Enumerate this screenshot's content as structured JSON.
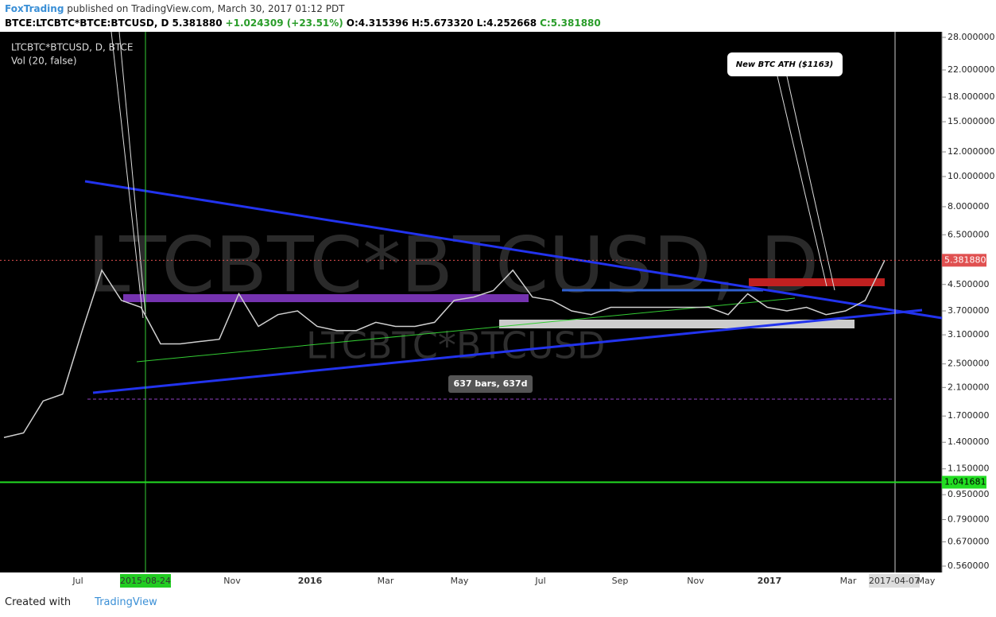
{
  "header": {
    "author": "FoxTrading",
    "published": "published on TradingView.com, March 30, 2017 01:12 PDT",
    "symbol": "BTCE:LTCBTC*BTCE:BTCUSD, D",
    "last": "5.381880",
    "change": "+1.024309 (+23.51%)",
    "open": "O:4.315396",
    "high": "H:5.673320",
    "low": "L:4.252668",
    "close": "C:5.381880"
  },
  "chart_data": {
    "type": "line",
    "title": "LTCBTC*BTCUSD, D, BTCE",
    "subtitle": "Vol (20, false)",
    "watermark": "LTCBTC*BTCUSD, D",
    "watermark2": "LTCBTC*BTCUSD",
    "color": "#d0d0d0",
    "log_scale": true,
    "values": [
      1.45,
      1.5,
      1.9,
      2.0,
      3.2,
      5.0,
      4.0,
      3.8,
      2.9,
      2.9,
      2.95,
      3.0,
      4.2,
      3.3,
      3.6,
      3.7,
      3.3,
      3.2,
      3.2,
      3.4,
      3.3,
      3.3,
      3.4,
      4.0,
      4.1,
      4.3,
      5.0,
      4.1,
      4.0,
      3.7,
      3.6,
      3.8,
      3.8,
      3.8,
      3.8,
      3.8,
      3.8,
      3.6,
      4.2,
      3.8,
      3.7,
      3.8,
      3.6,
      3.7,
      4.0,
      5.38188
    ],
    "ylim": [
      0.56,
      28
    ],
    "yticks": [
      {
        "value": 28,
        "label": "28.000000"
      },
      {
        "value": 22,
        "label": "22.000000"
      },
      {
        "value": 18,
        "label": "18.000000"
      },
      {
        "value": 15,
        "label": "15.000000"
      },
      {
        "value": 12,
        "label": "12.000000"
      },
      {
        "value": 10,
        "label": "10.000000"
      },
      {
        "value": 8,
        "label": "8.000000"
      },
      {
        "value": 6.5,
        "label": "6.500000"
      },
      {
        "value": 4.5,
        "label": "4.500000"
      },
      {
        "value": 3.7,
        "label": "3.700000"
      },
      {
        "value": 3.1,
        "label": "3.100000"
      },
      {
        "value": 2.5,
        "label": "2.500000"
      },
      {
        "value": 2.1,
        "label": "2.100000"
      },
      {
        "value": 1.7,
        "label": "1.700000"
      },
      {
        "value": 1.4,
        "label": "1.400000"
      },
      {
        "value": 1.15,
        "label": "1.150000"
      },
      {
        "value": 0.95,
        "label": "0.950000"
      },
      {
        "value": 0.79,
        "label": "0.790000"
      },
      {
        "value": 0.67,
        "label": "0.670000"
      },
      {
        "value": 0.56,
        "label": "0.560000"
      }
    ],
    "price_lines": [
      {
        "value": 5.38188,
        "label": "5.381880",
        "color": "#e05050"
      },
      {
        "value": 1.041681,
        "label": "1.041681",
        "color": "#22dd22"
      }
    ],
    "x_labels": [
      "Jul",
      "2015-08-24",
      "Nov",
      "2016",
      "Mar",
      "May",
      "Jul",
      "Sep",
      "Nov",
      "2017",
      "Mar",
      "2017-04-07",
      "May"
    ],
    "annotations": [
      "New BTC ATH ($1163)",
      "637 bars, 637d"
    ]
  },
  "footer": {
    "created": "Created with",
    "brand": "TradingView"
  }
}
